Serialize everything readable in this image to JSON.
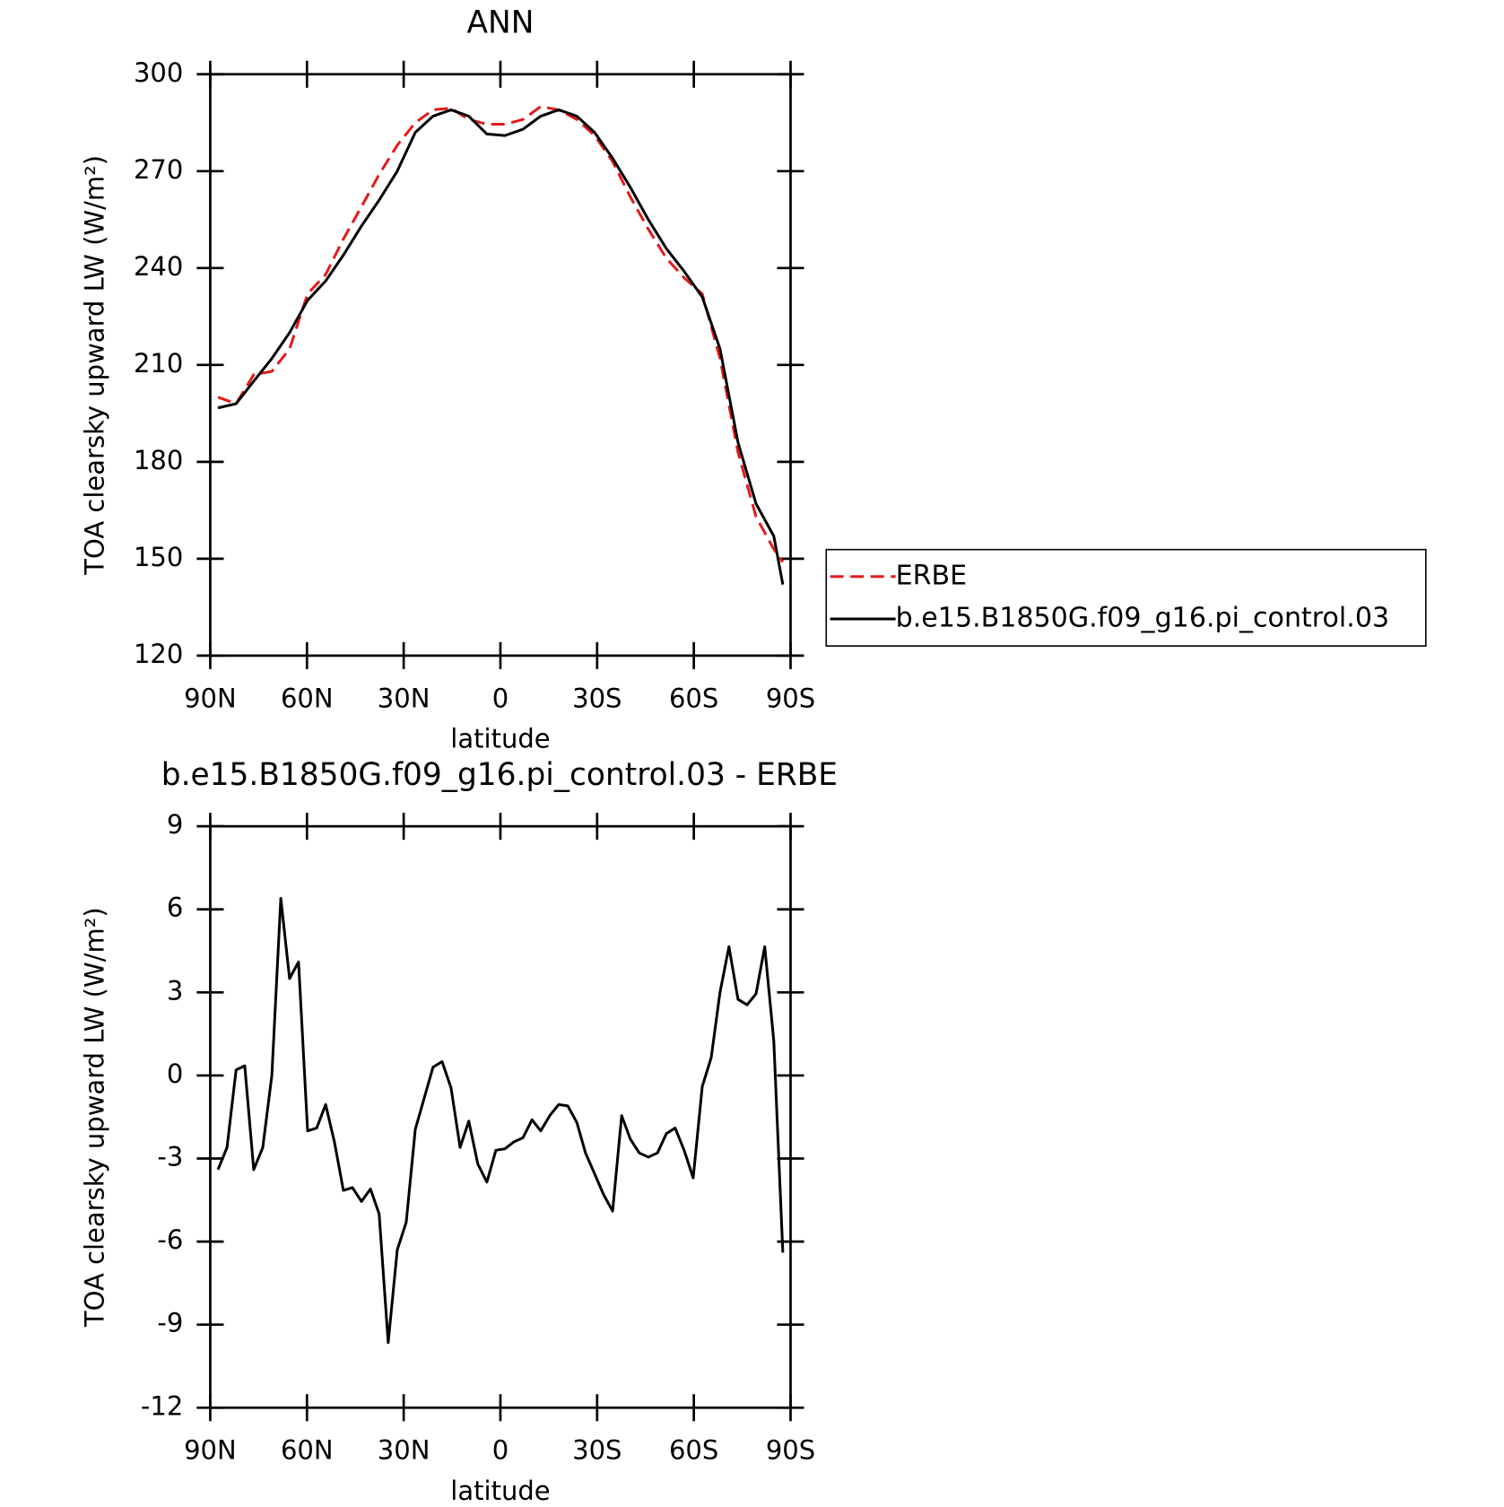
{
  "chart_data": [
    {
      "type": "line",
      "title": "ANN",
      "xlabel": "latitude",
      "ylabel": "TOA clearsky upward LW (W/m²)",
      "x": [
        87.6,
        82.0,
        76.5,
        70.9,
        65.4,
        59.8,
        54.2,
        48.7,
        43.1,
        37.6,
        32.0,
        26.4,
        20.9,
        15.3,
        9.8,
        4.2,
        -1.4,
        -7.0,
        -12.5,
        -18.1,
        -23.7,
        -29.2,
        -34.8,
        -40.3,
        -45.9,
        -51.5,
        -57.0,
        -62.6,
        -68.1,
        -73.7,
        -79.3,
        -84.8,
        -87.6
      ],
      "series": [
        {
          "name": "ERBE",
          "color": "#e41a1c",
          "dash": true,
          "values": [
            200,
            198,
            207,
            208,
            215,
            232,
            238,
            249,
            259,
            269,
            278,
            285,
            289,
            289.5,
            286,
            284.5,
            284.5,
            286,
            290,
            289,
            286,
            281,
            273,
            262,
            252,
            243,
            237,
            232,
            212,
            183,
            163,
            153,
            149
          ]
        },
        {
          "name": "b.e15.B1850G.f09_g16.pi_control.03",
          "color": "#000000",
          "dash": false,
          "values": [
            196.7,
            198,
            205,
            212,
            220,
            230,
            236,
            244,
            253,
            261,
            270,
            282,
            287,
            289,
            287,
            281.5,
            281,
            283,
            287,
            289,
            287,
            282,
            274,
            265,
            255,
            246,
            239,
            231,
            215,
            186,
            167,
            157,
            142
          ]
        }
      ],
      "xlim": [
        90,
        -90
      ],
      "xticks": [
        {
          "value": 90,
          "label": "90N"
        },
        {
          "value": 60,
          "label": "60N"
        },
        {
          "value": 30,
          "label": "30N"
        },
        0,
        {
          "value": -30,
          "label": "30S"
        },
        {
          "value": -60,
          "label": "60S"
        },
        {
          "value": -90,
          "label": "90S"
        }
      ],
      "ylim": [
        120,
        300
      ],
      "yticks": [
        120,
        150,
        180,
        210,
        240,
        270,
        300
      ],
      "legend": "right"
    },
    {
      "type": "line",
      "title": "b.e15.B1850G.f09_g16.pi_control.03 - ERBE",
      "xlabel": "latitude",
      "ylabel": "TOA clearsky upward LW (W/m²)",
      "x": [
        87.6,
        84.8,
        82.0,
        79.3,
        76.5,
        73.7,
        70.9,
        68.1,
        65.4,
        62.6,
        59.8,
        57.0,
        54.2,
        51.5,
        48.7,
        45.9,
        43.1,
        40.3,
        37.6,
        34.8,
        32.0,
        29.2,
        26.4,
        23.7,
        20.9,
        18.1,
        15.3,
        12.5,
        9.8,
        7.0,
        4.2,
        1.4,
        -1.4,
        -4.2,
        -7.0,
        -9.8,
        -12.5,
        -15.3,
        -18.1,
        -20.9,
        -23.7,
        -26.4,
        -29.2,
        -32.0,
        -34.8,
        -37.6,
        -40.3,
        -43.1,
        -45.9,
        -48.7,
        -51.5,
        -54.2,
        -57.0,
        -59.8,
        -62.6,
        -65.4,
        -68.1,
        -70.9,
        -73.7,
        -76.5,
        -79.3,
        -82.0,
        -84.8,
        -87.6
      ],
      "series": [
        {
          "color": "#000000",
          "dash": false,
          "values": [
            -3.4,
            -2.6,
            0.2,
            0.35,
            -3.4,
            -2.6,
            0,
            6.4,
            3.5,
            4.1,
            -2,
            -1.9,
            -1.05,
            -2.4,
            -4.15,
            -4.05,
            -4.55,
            -4.1,
            -5,
            -9.65,
            -6.3,
            -5.3,
            -1.95,
            -0.85,
            0.3,
            0.5,
            -0.45,
            -2.6,
            -1.65,
            -3.2,
            -3.85,
            -2.7,
            -2.65,
            -2.4,
            -2.25,
            -1.6,
            -2,
            -1.45,
            -1.05,
            -1.1,
            -1.7,
            -2.8,
            -3.55,
            -4.3,
            -4.9,
            -1.45,
            -2.3,
            -2.8,
            -2.95,
            -2.8,
            -2.1,
            -1.9,
            -2.7,
            -3.7,
            -0.4,
            0.65,
            3,
            4.65,
            2.75,
            2.55,
            2.95,
            4.65,
            1.25,
            -6.4
          ]
        }
      ],
      "xlim": [
        90,
        -90
      ],
      "xticks": [
        {
          "value": 90,
          "label": "90N"
        },
        {
          "value": 60,
          "label": "60N"
        },
        {
          "value": 30,
          "label": "30N"
        },
        0,
        {
          "value": -30,
          "label": "30S"
        },
        {
          "value": -60,
          "label": "60S"
        },
        {
          "value": -90,
          "label": "90S"
        }
      ],
      "ylim": [
        -12,
        9
      ],
      "yticks": [
        -12,
        -9,
        -6,
        -3,
        0,
        3,
        6,
        9
      ]
    }
  ]
}
